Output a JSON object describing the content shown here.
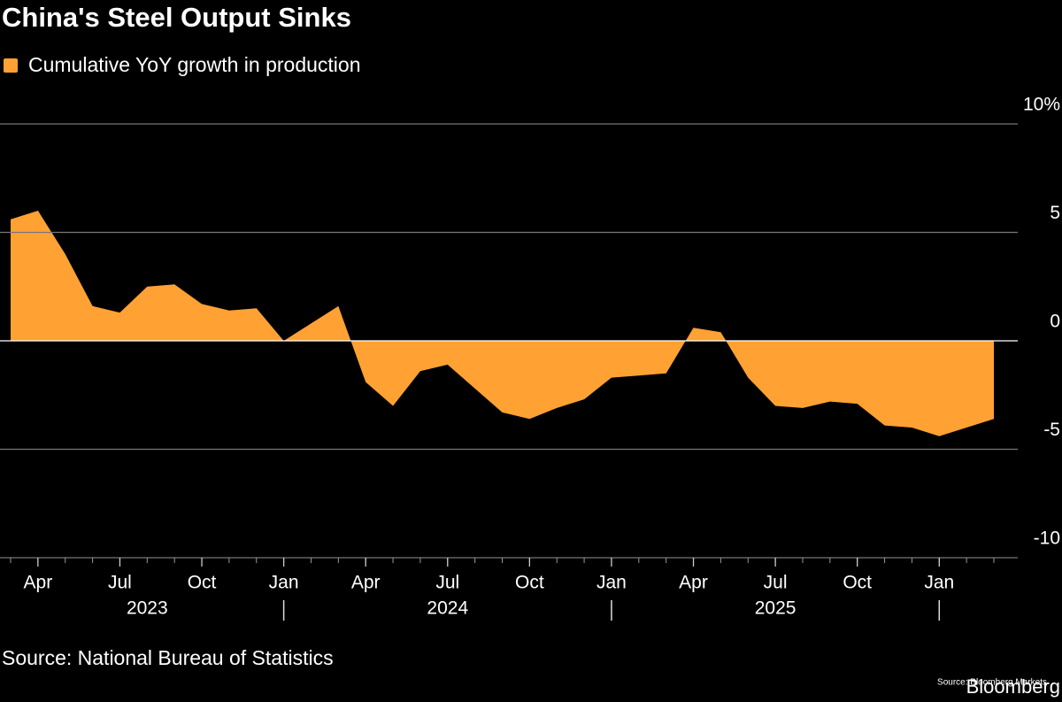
{
  "chart_data": {
    "type": "area",
    "title": "China's Steel Output Sinks",
    "source": "Source: National Bureau of Statistics",
    "credit": "Source: Bloomberg Markets",
    "watermark": "Bloomberg",
    "x": [
      "2023-03",
      "2023-04",
      "2023-05",
      "2023-06",
      "2023-07",
      "2023-08",
      "2023-09",
      "2023-10",
      "2023-11",
      "2023-12",
      "2024-01",
      "2024-02",
      "2024-03",
      "2024-04",
      "2024-05",
      "2024-06",
      "2024-07",
      "2024-08",
      "2024-09",
      "2024-10",
      "2024-11",
      "2024-12",
      "2025-01",
      "2025-02",
      "2025-03",
      "2025-04",
      "2025-05",
      "2025-06",
      "2025-07",
      "2025-08",
      "2025-09",
      "2025-10",
      "2025-11",
      "2025-12",
      "2026-01",
      "2026-02",
      "2026-03"
    ],
    "series": [
      {
        "name": "Cumulative YoY growth in production",
        "color": "#ffa133",
        "values": [
          5.6,
          6.0,
          4.0,
          1.6,
          1.3,
          2.5,
          2.6,
          1.7,
          1.4,
          1.5,
          0.0,
          0.8,
          1.6,
          -1.9,
          -3.0,
          -1.4,
          -1.1,
          -2.2,
          -3.3,
          -3.6,
          -3.1,
          -2.7,
          -1.7,
          -1.6,
          -1.5,
          0.6,
          0.4,
          -1.7,
          -3.0,
          -3.1,
          -2.8,
          -2.9,
          -3.9,
          -4.0,
          -4.4,
          -4.0,
          -3.6
        ]
      }
    ],
    "xticks": [
      {
        "value": "2023-04",
        "label": "Apr"
      },
      {
        "value": "2023-07",
        "label": "Jul"
      },
      {
        "value": "2023-10",
        "label": "Oct"
      },
      {
        "value": "2024-01",
        "label": "Jan"
      },
      {
        "value": "2024-04",
        "label": "Apr"
      },
      {
        "value": "2024-07",
        "label": "Jul"
      },
      {
        "value": "2024-10",
        "label": "Oct"
      },
      {
        "value": "2025-01",
        "label": "Jan"
      },
      {
        "value": "2025-04",
        "label": "Apr"
      },
      {
        "value": "2025-07",
        "label": "Jul"
      },
      {
        "value": "2025-10",
        "label": "Oct"
      },
      {
        "value": "2026-01",
        "label": "Jan"
      }
    ],
    "year_labels": [
      "2023",
      "2024",
      "2025"
    ],
    "ylim": [
      -10,
      10
    ],
    "yticks": [
      {
        "value": 10,
        "label": "10%"
      },
      5,
      0,
      -5,
      -10
    ],
    "grid": true
  }
}
